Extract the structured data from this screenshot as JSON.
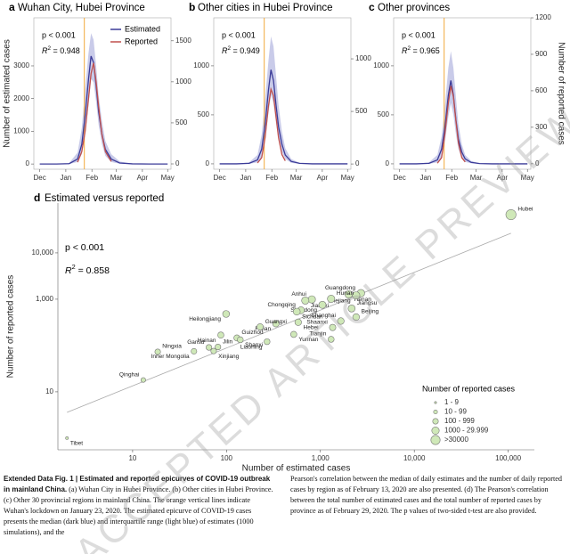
{
  "chart_data": [
    {
      "type": "line",
      "label": "a",
      "title": "Wuhan City, Hubei Province",
      "ylabel": "Number of estimated cases",
      "x": [
        0,
        20,
        35,
        45,
        50,
        54,
        58,
        61,
        64,
        67,
        70,
        74,
        78,
        85,
        95,
        110,
        130,
        152
      ],
      "xlim": [
        -7,
        156
      ],
      "xticks": [
        {
          "value": 0,
          "label": "Dec"
        },
        {
          "value": 31,
          "label": "Jan"
        },
        {
          "value": 62,
          "label": "Feb"
        },
        {
          "value": 91,
          "label": "Mar"
        },
        {
          "value": 122,
          "label": "Apr"
        },
        {
          "value": 152,
          "label": "May"
        }
      ],
      "ylim": [
        -160,
        4470
      ],
      "yticks": [
        0,
        1000,
        2000,
        3000
      ],
      "y2lim": [
        -65,
        1780
      ],
      "y2ticks": [
        0,
        500,
        1000,
        1500
      ],
      "vline": 53,
      "vline_color": "#f2a93b",
      "p_text": "p < 0.001",
      "r2": {
        "symbol": "R",
        "power": "2",
        "text": " = 0.948"
      },
      "legend": "upper right",
      "series": [
        {
          "name": "Estimated",
          "color": "#3b3b98",
          "band_color": "#c9cbe9",
          "values": [
            0,
            0,
            10,
            150,
            600,
            1500,
            2600,
            3300,
            3100,
            2400,
            1600,
            900,
            450,
            150,
            30,
            5,
            0,
            0
          ],
          "upper": [
            0,
            0,
            30,
            350,
            1100,
            2300,
            3400,
            4000,
            3800,
            3000,
            2100,
            1300,
            700,
            300,
            80,
            10,
            0,
            0
          ],
          "lower": [
            0,
            0,
            0,
            60,
            300,
            900,
            1800,
            2600,
            2500,
            1900,
            1200,
            600,
            250,
            60,
            10,
            0,
            0,
            0
          ]
        },
        {
          "name": "Reported",
          "color": "#c0504d",
          "axis": "y2",
          "values": [
            null,
            null,
            null,
            20,
            150,
            400,
            800,
            1100,
            1230,
            1000,
            700,
            350,
            150,
            30,
            null,
            null,
            null,
            null
          ]
        }
      ]
    },
    {
      "type": "line",
      "label": "b",
      "title": "Other cities in Hubei Province",
      "x": [
        0,
        20,
        35,
        45,
        50,
        54,
        58,
        61,
        64,
        67,
        70,
        74,
        78,
        85,
        95,
        110,
        130,
        152
      ],
      "xlim": [
        -7,
        156
      ],
      "xticks": [
        {
          "value": 0,
          "label": "Dec"
        },
        {
          "value": 31,
          "label": "Jan"
        },
        {
          "value": 62,
          "label": "Feb"
        },
        {
          "value": 91,
          "label": "Mar"
        },
        {
          "value": 122,
          "label": "Apr"
        },
        {
          "value": 152,
          "label": "May"
        }
      ],
      "ylim": [
        -55,
        1490
      ],
      "yticks": [
        0,
        500,
        1000
      ],
      "y2lim": [
        -50,
        1390
      ],
      "y2ticks": [
        0,
        500,
        1000
      ],
      "vline": 53,
      "vline_color": "#f2a93b",
      "p_text": "p < 0.001",
      "r2": {
        "symbol": "R",
        "power": "2",
        "text": " = 0.949"
      },
      "series": [
        {
          "color": "#3b3b98",
          "band_color": "#c9cbe9",
          "values": [
            0,
            0,
            5,
            40,
            150,
            400,
            750,
            960,
            850,
            600,
            380,
            200,
            90,
            25,
            5,
            0,
            0,
            0
          ],
          "upper": [
            0,
            0,
            15,
            90,
            300,
            650,
            1050,
            1300,
            1200,
            900,
            600,
            330,
            160,
            50,
            10,
            0,
            0,
            0
          ],
          "lower": [
            0,
            0,
            0,
            15,
            70,
            250,
            520,
            700,
            620,
            420,
            250,
            120,
            50,
            10,
            0,
            0,
            0,
            0
          ]
        },
        {
          "color": "#c0504d",
          "axis": "y2",
          "values": [
            null,
            null,
            null,
            10,
            60,
            250,
            550,
            710,
            650,
            450,
            250,
            90,
            30,
            null,
            null,
            null,
            null,
            null
          ]
        }
      ]
    },
    {
      "type": "line",
      "label": "c",
      "title": "Other provinces",
      "y2label": "Number of reported cases",
      "x": [
        0,
        20,
        35,
        45,
        50,
        54,
        58,
        61,
        64,
        67,
        70,
        74,
        78,
        85,
        95,
        110,
        130,
        152
      ],
      "xlim": [
        -7,
        156
      ],
      "xticks": [
        {
          "value": 0,
          "label": "Dec"
        },
        {
          "value": 31,
          "label": "Jan"
        },
        {
          "value": 62,
          "label": "Feb"
        },
        {
          "value": 91,
          "label": "Mar"
        },
        {
          "value": 122,
          "label": "Apr"
        },
        {
          "value": 152,
          "label": "May"
        }
      ],
      "ylim": [
        -55,
        1490
      ],
      "yticks": [
        0,
        500,
        1000
      ],
      "y2lim": [
        -45,
        1200
      ],
      "y2ticks": [
        0,
        300,
        600,
        900,
        1200
      ],
      "vline": 53,
      "vline_color": "#f2a93b",
      "p_text": "p < 0.001",
      "r2": {
        "symbol": "R",
        "power": "2",
        "text": " = 0.965"
      },
      "series": [
        {
          "color": "#3b3b98",
          "band_color": "#c9cbe9",
          "values": [
            0,
            0,
            5,
            40,
            150,
            380,
            700,
            850,
            700,
            450,
            250,
            120,
            50,
            15,
            3,
            0,
            0,
            0
          ],
          "upper": [
            0,
            0,
            15,
            90,
            280,
            600,
            980,
            1150,
            980,
            680,
            400,
            200,
            90,
            30,
            6,
            0,
            0,
            0
          ],
          "lower": [
            0,
            0,
            0,
            15,
            70,
            230,
            480,
            620,
            500,
            300,
            150,
            60,
            20,
            5,
            0,
            0,
            0,
            0
          ]
        },
        {
          "color": "#c0504d",
          "axis": "y2",
          "values": [
            null,
            null,
            null,
            5,
            50,
            250,
            500,
            640,
            550,
            350,
            170,
            50,
            15,
            null,
            null,
            null,
            null,
            null
          ]
        }
      ]
    },
    {
      "type": "scatter",
      "label": "d",
      "title": "Estimated versus reported",
      "xlabel": "Number of estimated cases",
      "ylabel": "Number of reported cases",
      "xscale": "log",
      "yscale": "log",
      "xlim": [
        1.6,
        190000
      ],
      "xticks": [
        10,
        100,
        {
          "value": 1000,
          "label": "1,000"
        },
        {
          "value": 10000,
          "label": "10,000"
        },
        {
          "value": 100000,
          "label": "100,000"
        }
      ],
      "ylim": [
        0.56,
        119000
      ],
      "yticks": [
        10,
        {
          "value": 1000,
          "label": "1,000"
        },
        {
          "value": 10000,
          "label": "10,000"
        }
      ],
      "p_text": "p < 0.001",
      "r2": {
        "symbol": "R",
        "power": "2",
        "text": " = 0.858"
      },
      "point_color": "#cfe8b8",
      "fit_color": "#aaaaaa",
      "fit": {
        "x": [
          2,
          107000
        ],
        "y": [
          3.6,
          26500
        ]
      },
      "points": [
        {
          "label": "Hubei",
          "estimated": 107000,
          "reported": 66907
        },
        {
          "label": "Guangdong",
          "estimated": 2700,
          "reported": 1349
        },
        {
          "label": "Henan",
          "estimated": 2000,
          "reported": 1272
        },
        {
          "label": "Zhejiang",
          "estimated": 2400,
          "reported": 1205
        },
        {
          "label": "Hunan",
          "estimated": 1300,
          "reported": 1018
        },
        {
          "label": "Anhui",
          "estimated": 810,
          "reported": 990
        },
        {
          "label": "Jiangxi",
          "estimated": 690,
          "reported": 935
        },
        {
          "label": "Shandong",
          "estimated": 1050,
          "reported": 756
        },
        {
          "label": "Jiangsu",
          "estimated": 2150,
          "reported": 631
        },
        {
          "label": "Chongqing",
          "estimated": 620,
          "reported": 576
        },
        {
          "label": "Sichuan",
          "estimated": 560,
          "reported": 538
        },
        {
          "label": "Heilongjiang",
          "estimated": 99,
          "reported": 480
        },
        {
          "label": "Beijing",
          "estimated": 2400,
          "reported": 411
        },
        {
          "label": "Shanghai",
          "estimated": 1650,
          "reported": 337
        },
        {
          "label": "Hebei",
          "estimated": 580,
          "reported": 318
        },
        {
          "label": "Fujian",
          "estimated": 336,
          "reported": 296
        },
        {
          "label": "Guangxi",
          "estimated": 228,
          "reported": 252
        },
        {
          "label": "Shaanxi",
          "estimated": 1350,
          "reported": 245
        },
        {
          "label": "Yunnan",
          "estimated": 520,
          "reported": 174
        },
        {
          "label": "Hainan",
          "estimated": 87,
          "reported": 168
        },
        {
          "label": "Guizhou",
          "estimated": 129,
          "reported": 146
        },
        {
          "label": "Tianjin",
          "estimated": 1300,
          "reported": 136
        },
        {
          "label": "Shanxi",
          "estimated": 140,
          "reported": 133
        },
        {
          "label": "Liaoning",
          "estimated": 270,
          "reported": 121
        },
        {
          "label": "Jilin",
          "estimated": 81,
          "reported": 93
        },
        {
          "label": "Gansu",
          "estimated": 65,
          "reported": 91
        },
        {
          "label": "Xinjiang",
          "estimated": 73,
          "reported": 76
        },
        {
          "label": "Inner Mongolia",
          "estimated": 45,
          "reported": 75
        },
        {
          "label": "Ningxia",
          "estimated": 18.5,
          "reported": 73
        },
        {
          "label": "Qinghai",
          "estimated": 13,
          "reported": 18
        },
        {
          "label": "Tibet",
          "estimated": 2,
          "reported": 1
        }
      ],
      "size_legend": {
        "title": "Number of reported cases",
        "entries": [
          "1 - 9",
          "10 - 99",
          "100 - 999",
          "1000 - 29.999",
          ">30000"
        ]
      }
    }
  ],
  "caption": {
    "title": "Extended Data Fig. 1 | Estimated and reported epicurves of COVID-19 outbreak in mainland China.",
    "column1": "(a) Wuhan City in Hubei Province. (b) Other cities in Hubei Province. (c) Other 30 provincial regions in mainland China. The orange vertical lines indicate Wuhan's lockdown on January 23, 2020. The estimated epicurve of COVID-19 cases presents the median (dark blue) and interquartile range (light blue) of estimates (1000 simulations), and the",
    "column2": "Pearson's correlation between the median of daily estimates and the number of daily reported cases by region as of February 13, 2020 are also presented. (d) The Pearson's correlation between the total number of estimated cases and the total number of reported cases by province as of February 29, 2020. The p values of two-sided t-test are also provided."
  },
  "watermark": "ACCEPTED ARTICLE PREVIEW"
}
